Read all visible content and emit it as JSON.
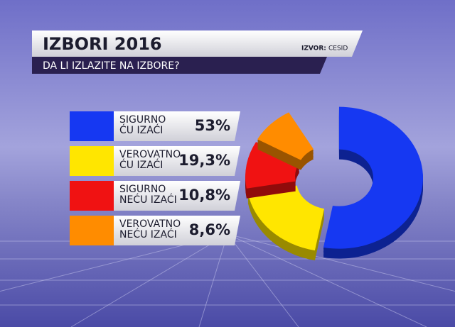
{
  "header": {
    "title": "IZBORI 2016",
    "subtitle": "DA LI IZLAZITE NA IZBORE?",
    "source_label": "IZVOR:",
    "source": "CESID"
  },
  "chart_data": {
    "type": "pie",
    "donut": true,
    "categories": [
      "SIGURNO\nĆU IZAĆI",
      "VEROVATNO\nĆU IZAĆI",
      "SIGURNO\nNEĆU IZAĆI",
      "VEROVATNO\nNEĆU IZAĆI"
    ],
    "values": [
      53,
      19.3,
      10.8,
      8.6
    ],
    "value_labels": [
      "53%",
      "19,3%",
      "10,8%",
      "8,6%"
    ],
    "colors": [
      "#1638f2",
      "#ffe600",
      "#f01212",
      "#ff8c00"
    ]
  }
}
